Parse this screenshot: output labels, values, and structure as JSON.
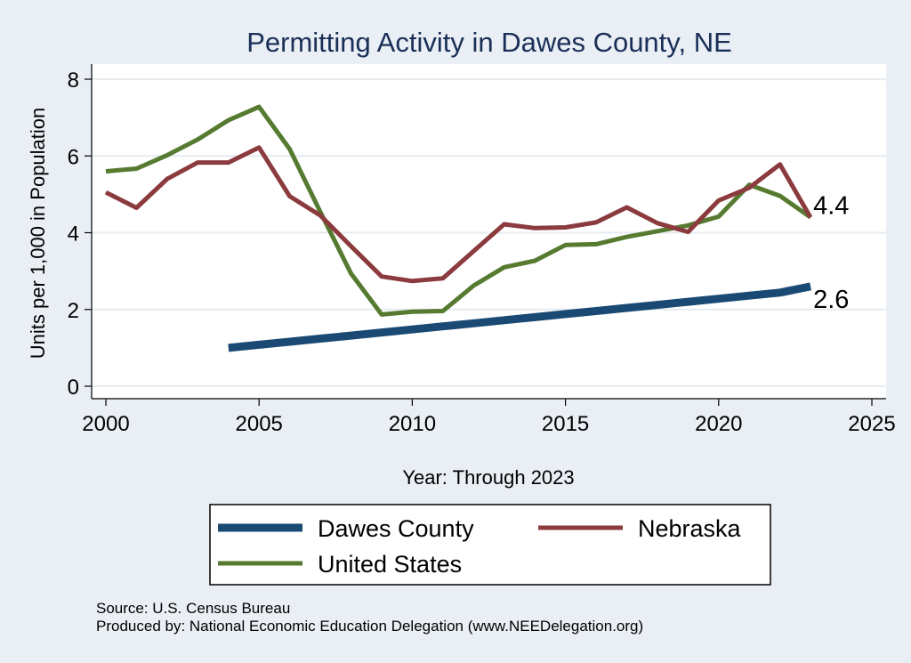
{
  "chart_data": {
    "type": "line",
    "title": "Permitting Activity in Dawes County, NE",
    "xlabel": "Year: Through 2023",
    "ylabel": "Units per 1,000 in Population",
    "xlim": [
      2000,
      2025
    ],
    "ylim": [
      0,
      8
    ],
    "xticks": [
      2000,
      2005,
      2010,
      2015,
      2020,
      2025
    ],
    "yticks": [
      0,
      2,
      4,
      6,
      8
    ],
    "grid": true,
    "legend_position": "bottom",
    "series": [
      {
        "name": "Dawes County",
        "color": "#1a4a73",
        "x": [
          2004,
          2005,
          2006,
          2007,
          2008,
          2009,
          2010,
          2011,
          2012,
          2013,
          2014,
          2015,
          2016,
          2017,
          2018,
          2019,
          2020,
          2021,
          2022,
          2023
        ],
        "values": [
          1.0,
          1.08,
          1.16,
          1.24,
          1.32,
          1.4,
          1.48,
          1.56,
          1.64,
          1.72,
          1.8,
          1.88,
          1.96,
          2.04,
          2.12,
          2.2,
          2.28,
          2.36,
          2.44,
          2.6
        ]
      },
      {
        "name": "Nebraska",
        "color": "#8b3a3e",
        "x": [
          2000,
          2001,
          2002,
          2003,
          2004,
          2005,
          2006,
          2007,
          2008,
          2009,
          2010,
          2011,
          2012,
          2013,
          2014,
          2015,
          2016,
          2017,
          2018,
          2019,
          2020,
          2021,
          2022,
          2023
        ],
        "values": [
          5.05,
          4.65,
          5.4,
          5.83,
          5.83,
          6.22,
          4.95,
          4.45,
          3.65,
          2.86,
          2.74,
          2.81,
          3.52,
          4.22,
          4.12,
          4.14,
          4.27,
          4.66,
          4.25,
          4.02,
          4.84,
          5.17,
          5.78,
          4.4
        ]
      },
      {
        "name": "United States",
        "color": "#557a30",
        "x": [
          2000,
          2001,
          2002,
          2003,
          2004,
          2005,
          2006,
          2007,
          2008,
          2009,
          2010,
          2011,
          2012,
          2013,
          2014,
          2015,
          2016,
          2017,
          2018,
          2019,
          2020,
          2021,
          2022,
          2023
        ],
        "values": [
          5.6,
          5.67,
          6.02,
          6.43,
          6.93,
          7.28,
          6.18,
          4.54,
          2.94,
          1.87,
          1.94,
          1.96,
          2.62,
          3.1,
          3.27,
          3.68,
          3.7,
          3.89,
          4.04,
          4.19,
          4.42,
          5.25,
          4.96,
          4.4
        ]
      }
    ],
    "annotations": [
      {
        "text": "4.4",
        "x": 2023,
        "y": 4.4
      },
      {
        "text": "2.6",
        "x": 2023,
        "y": 2.6
      }
    ]
  },
  "notes": {
    "source": "Source: U.S. Census Bureau",
    "produced_by": "Produced by: National Economic Education Delegation (www.NEEDelegation.org)"
  }
}
